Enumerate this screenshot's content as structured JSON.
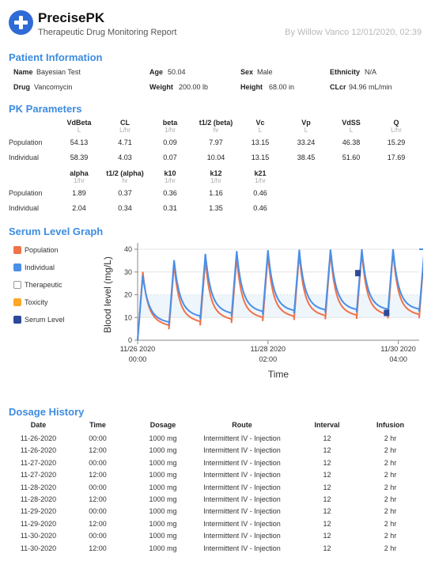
{
  "header": {
    "brand": "PrecisePK",
    "subtitle": "Therapeutic Drug Monitoring Report",
    "byline": "By Willow Vanco 12/01/2020, 02:39",
    "logo_icon": "plus-icon",
    "accent": "#2f6bd6"
  },
  "patient": {
    "title": "Patient Information",
    "name_label": "Name",
    "name": "Bayesian Test",
    "age_label": "Age",
    "age": "50.04",
    "sex_label": "Sex",
    "sex": "Male",
    "ethnicity_label": "Ethnicity",
    "ethnicity": "N/A",
    "drug_label": "Drug",
    "drug": "Vancomycin",
    "weight_label": "Weight",
    "weight": "200.00 lb",
    "height_label": "Height",
    "height": "68.00 in",
    "clcr_label": "CLcr",
    "clcr": "94.96 mL/min"
  },
  "pk": {
    "title": "PK Parameters",
    "row_labels": [
      "Population",
      "Individual"
    ],
    "table1": {
      "headers": [
        "VdBeta",
        "CL",
        "beta",
        "t1/2 (beta)",
        "Vc",
        "Vp",
        "VdSS",
        "Q"
      ],
      "units": [
        "L",
        "L/hr",
        "1/hr",
        "hr",
        "L",
        "L",
        "L",
        "L/hr"
      ],
      "population": [
        "54.13",
        "4.71",
        "0.09",
        "7.97",
        "13.15",
        "33.24",
        "46.38",
        "15.29"
      ],
      "individual": [
        "58.39",
        "4.03",
        "0.07",
        "10.04",
        "13.15",
        "38.45",
        "51.60",
        "17.69"
      ]
    },
    "table2": {
      "headers": [
        "alpha",
        "t1/2 (alpha)",
        "k10",
        "k12",
        "k21"
      ],
      "units": [
        "1/hr",
        "hr",
        "1/hr",
        "1/hr",
        "1/hr"
      ],
      "population": [
        "1.89",
        "0.37",
        "0.36",
        "1.16",
        "0.46"
      ],
      "individual": [
        "2.04",
        "0.34",
        "0.31",
        "1.35",
        "0.46"
      ]
    }
  },
  "graph": {
    "title": "Serum Level Graph",
    "legend": [
      {
        "label": "Population",
        "color": "#f0724a",
        "filled": true
      },
      {
        "label": "Individual",
        "color": "#4a8fe8",
        "filled": true
      },
      {
        "label": "Therapeutic",
        "color": "#ffffff",
        "filled": false
      },
      {
        "label": "Toxicity",
        "color": "#ffa726",
        "filled": true
      },
      {
        "label": "Serum Level",
        "color": "#2b4a9a",
        "filled": true
      }
    ]
  },
  "chart_data": {
    "type": "line",
    "xlabel": "Time",
    "ylabel": "Blood level (mg/L)",
    "ylim": [
      0,
      40
    ],
    "yticks": [
      "0",
      "10",
      "20",
      "30",
      "40"
    ],
    "xlim_hours": [
      0,
      108
    ],
    "xticks": [
      {
        "hour": 0,
        "date": "11/26 2020",
        "time": "00:00"
      },
      {
        "hour": 50,
        "date": "11/28 2020",
        "time": "02:00"
      },
      {
        "hour": 100,
        "date": "11/30 2020",
        "time": "04:00"
      }
    ],
    "dose_interval_hr": 12,
    "infusion_hr": 2,
    "doses": 10,
    "series": [
      {
        "name": "Population",
        "color": "#f0724a",
        "peaks": [
          30.1,
          33.5,
          35.4,
          36.7,
          37.7,
          38.4,
          38.8,
          39.1,
          39.3,
          39.4
        ],
        "troughs": [
          4.8,
          6.5,
          7.6,
          8.4,
          8.9,
          9.2,
          9.4,
          9.6,
          9.7,
          9.7
        ]
      },
      {
        "name": "Individual",
        "color": "#4a8fe8",
        "peaks": [
          28.5,
          35.2,
          38.0,
          39.2,
          39.6,
          39.8,
          39.9,
          40.0,
          40.0,
          40.0
        ],
        "troughs": [
          6.7,
          9.2,
          10.5,
          11.3,
          11.8,
          12.1,
          12.3,
          12.4,
          12.5,
          12.5
        ]
      }
    ],
    "serum_levels": [
      {
        "hour": 84.5,
        "value": 29.5
      },
      {
        "hour": 95.5,
        "value": 12.0
      }
    ],
    "therapeutic_range": [
      10,
      20
    ],
    "colors": {
      "axis": "#888888",
      "grid": "#e4e4e4",
      "band": "#eef6fb"
    }
  },
  "dosage": {
    "title": "Dosage History",
    "headers": [
      "Date",
      "Time",
      "Dosage",
      "Route",
      "Interval",
      "Infusion"
    ],
    "rows": [
      [
        "11-26-2020",
        "00:00",
        "1000 mg",
        "Intermittent IV - Injection",
        "12",
        "2 hr"
      ],
      [
        "11-26-2020",
        "12:00",
        "1000 mg",
        "Intermittent IV - Injection",
        "12",
        "2 hr"
      ],
      [
        "11-27-2020",
        "00:00",
        "1000 mg",
        "Intermittent IV - Injection",
        "12",
        "2 hr"
      ],
      [
        "11-27-2020",
        "12:00",
        "1000 mg",
        "Intermittent IV - Injection",
        "12",
        "2 hr"
      ],
      [
        "11-28-2020",
        "00:00",
        "1000 mg",
        "Intermittent IV - Injection",
        "12",
        "2 hr"
      ],
      [
        "11-28-2020",
        "12:00",
        "1000 mg",
        "Intermittent IV - Injection",
        "12",
        "2 hr"
      ],
      [
        "11-29-2020",
        "00:00",
        "1000 mg",
        "Intermittent IV - Injection",
        "12",
        "2 hr"
      ],
      [
        "11-29-2020",
        "12:00",
        "1000 mg",
        "Intermittent IV - Injection",
        "12",
        "2 hr"
      ],
      [
        "11-30-2020",
        "00:00",
        "1000 mg",
        "Intermittent IV - Injection",
        "12",
        "2 hr"
      ],
      [
        "11-30-2020",
        "12:00",
        "1000 mg",
        "Intermittent IV - Injection",
        "12",
        "2 hr"
      ]
    ]
  }
}
